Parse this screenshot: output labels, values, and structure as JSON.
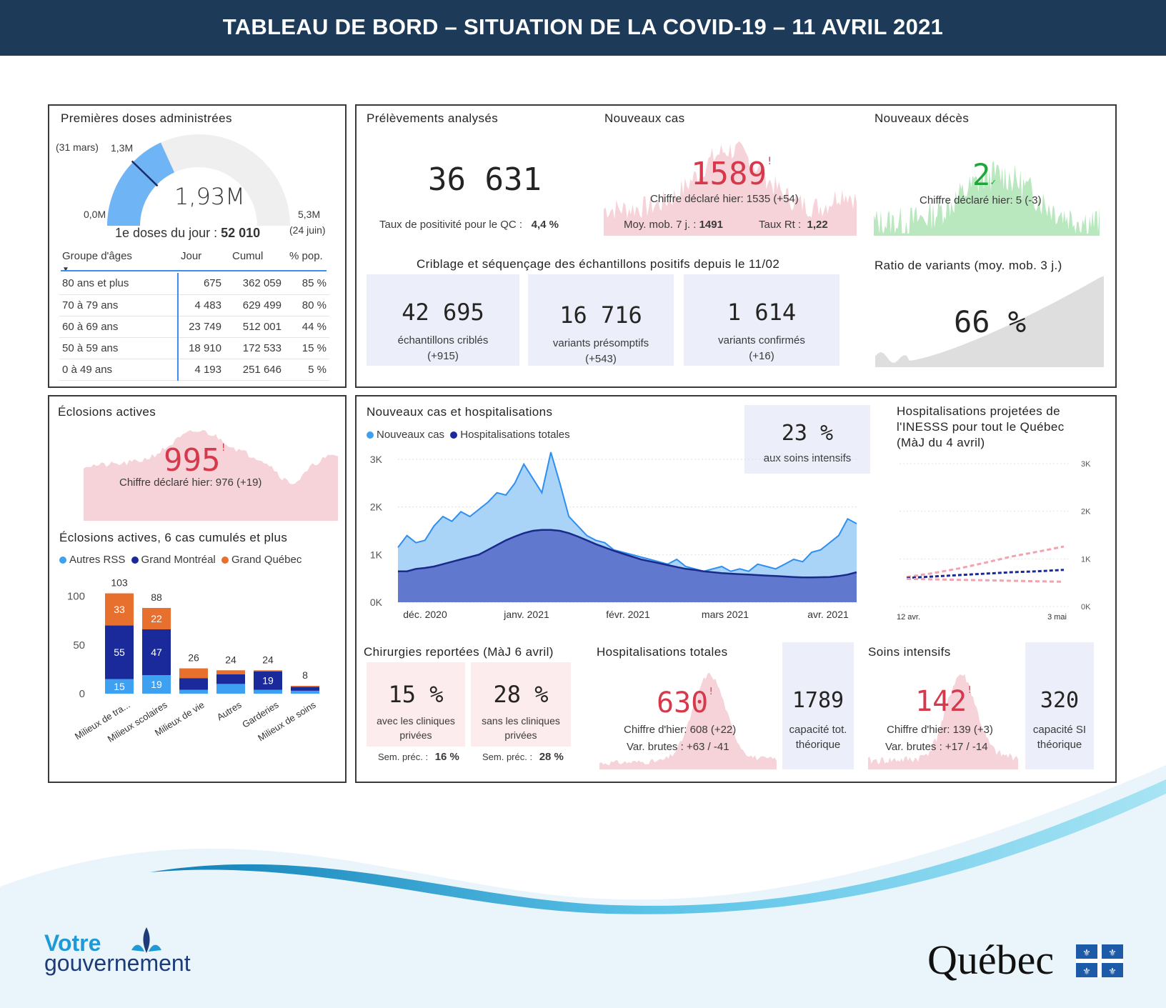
{
  "header": {
    "title": "TABLEAU DE BORD – SITUATION DE LA COVID-19 – 11 AVRIL 2021"
  },
  "doses": {
    "title": "Premières doses administrées",
    "gauge_value": "1,93M",
    "gauge_min": "0,0M",
    "gauge_max": "5,3M",
    "gauge_max_note": "(24 juin)",
    "target_note": "(31 mars)",
    "target_value": "1,3M",
    "gauge_fraction": 0.364,
    "target_fraction": 0.245,
    "daily_label": "1e doses du jour :",
    "daily_value": "52 010",
    "table_headers": [
      "Groupe d'âges",
      "Jour",
      "Cumul",
      "% pop."
    ],
    "rows": [
      [
        "80 ans et plus",
        "675",
        "362 059",
        "85 %"
      ],
      [
        "70 à 79 ans",
        "4 483",
        "629 499",
        "80 %"
      ],
      [
        "60 à 69 ans",
        "23 749",
        "512 001",
        "44 %"
      ],
      [
        "50 à 59 ans",
        "18 910",
        "172 533",
        "15 %"
      ],
      [
        "0 à 49 ans",
        "4 193",
        "251 646",
        "5 %"
      ]
    ]
  },
  "samples": {
    "title": "Prélèvements analysés",
    "value": "36 631",
    "positivity_label": "Taux de positivité pour le QC :",
    "positivity_value": "4,4 %"
  },
  "new_cases": {
    "title": "Nouveaux cas",
    "value": "1589",
    "mark": "!",
    "yesterday": "Chiffre déclaré hier: 1535 (+54)",
    "mm_label": "Moy. mob. 7 j. :",
    "mm_value": "1491",
    "rt_label": "Taux Rt :",
    "rt_value": "1,22"
  },
  "deaths": {
    "title": "Nouveaux décès",
    "value": "2",
    "mark": "✓",
    "yesterday": "Chiffre déclaré hier: 5 (-3)"
  },
  "screening": {
    "title": "Criblage et séquençage des échantillons positifs depuis le 11/02",
    "cards": [
      {
        "value": "42 695",
        "label": "échantillons criblés",
        "delta": "(+915)"
      },
      {
        "value": "16 716",
        "label": "variants présomptifs",
        "delta": "(+543)"
      },
      {
        "value": "1 614",
        "label": "variants confirmés",
        "delta": "(+16)"
      }
    ]
  },
  "variants": {
    "title": "Ratio de variants (moy. mob. 3 j.)",
    "value": "66 %"
  },
  "outbreaks": {
    "title": "Éclosions actives",
    "value": "995",
    "mark": "!",
    "yesterday": "Chiffre déclaré hier: 976 (+19)"
  },
  "outbreaks_chart": {
    "title": "Éclosions actives, 6 cas cumulés et plus",
    "legend": [
      "Autres RSS",
      "Grand Montréal",
      "Grand Québec"
    ]
  },
  "cases_hosp": {
    "title": "Nouveaux cas et hospitalisations",
    "legend": [
      "Nouveaux cas",
      "Hospitalisations totales"
    ],
    "icu_value": "23 %",
    "icu_label": "aux soins intensifs"
  },
  "projection": {
    "title_lines": [
      "Hospitalisations projetées de",
      "l'INESSS pour tout le Québec",
      "(MàJ du 4 avril)"
    ]
  },
  "surgeries": {
    "title": "Chirurgies reportées (MàJ 6 avril)",
    "cards": [
      {
        "value": "15 %",
        "label1": "avec les cliniques",
        "label2": "privées",
        "prev_label": "Sem. préc. :",
        "prev_value": "16 %"
      },
      {
        "value": "28 %",
        "label1": "sans les cliniques",
        "label2": "privées",
        "prev_label": "Sem. préc. :",
        "prev_value": "28 %"
      }
    ]
  },
  "hospital": {
    "title": "Hospitalisations totales",
    "value": "630",
    "mark": "!",
    "yesterday": "Chiffre d'hier: 608 (+22)",
    "var": "Var. brutes : +63  /  -41",
    "capacity_value": "1789",
    "capacity_label1": "capacité tot.",
    "capacity_label2": "théorique"
  },
  "icu": {
    "title": "Soins intensifs",
    "value": "142",
    "mark": "!",
    "yesterday": "Chiffre d'hier: 139 (+3)",
    "var": "Var. brutes : +17  /  -14",
    "capacity_value": "320",
    "capacity_label1": "capacité SI",
    "capacity_label2": "théorique"
  },
  "footer": {
    "gov_line1": "Votre",
    "gov_line2": "gouvernement",
    "quebec": "Québec"
  },
  "colors": {
    "header": "#1d3b58",
    "light_blue": "#3ea0f0",
    "navy": "#1a2a9b",
    "orange": "#e8702f",
    "red": "#d6384c",
    "pink": "#f6d3d8",
    "green": "#b9e7be"
  },
  "chart_data": [
    {
      "type": "bar",
      "title": "Éclosions actives, 6 cas cumulés et plus",
      "categories": [
        "Milieux de tra...",
        "Milieux scolaires",
        "Milieux de vie",
        "Autres",
        "Garderies",
        "Milieux de soins"
      ],
      "series": [
        {
          "name": "Autres RSS",
          "values": [
            15,
            19,
            4,
            10,
            4,
            3
          ]
        },
        {
          "name": "Grand Montréal",
          "values": [
            55,
            47,
            12,
            10,
            19,
            4
          ]
        },
        {
          "name": "Grand Québec",
          "values": [
            33,
            22,
            10,
            4,
            1,
            1
          ]
        }
      ],
      "totals": [
        103,
        88,
        26,
        24,
        24,
        8
      ],
      "ylim": [
        0,
        110
      ],
      "yticks": [
        0,
        50,
        100
      ]
    },
    {
      "type": "area",
      "title": "Nouveaux cas et hospitalisations",
      "x_ticks": [
        "déc. 2020",
        "janv. 2021",
        "févr. 2021",
        "mars 2021",
        "avr. 2021"
      ],
      "y_ticks": [
        "0K",
        "1K",
        "2K",
        "3K"
      ],
      "ylim": [
        0,
        3000
      ],
      "series": [
        {
          "name": "Nouveaux cas",
          "values": [
            1150,
            1400,
            1250,
            1300,
            1600,
            1800,
            1700,
            1900,
            1800,
            1950,
            2100,
            2300,
            2250,
            2500,
            2900,
            2600,
            2300,
            3150,
            2500,
            1800,
            1600,
            1400,
            1300,
            1250,
            1100,
            1050,
            1000,
            950,
            900,
            850,
            800,
            900,
            750,
            700,
            650,
            700,
            750,
            650,
            700,
            650,
            800,
            750,
            700,
            800,
            900,
            850,
            1050,
            1100,
            1250,
            1400,
            1750,
            1650
          ]
        },
        {
          "name": "Hospitalisations totales",
          "values": [
            650,
            650,
            700,
            720,
            750,
            800,
            850,
            900,
            950,
            1000,
            1100,
            1200,
            1300,
            1380,
            1450,
            1500,
            1520,
            1520,
            1500,
            1450,
            1380,
            1300,
            1220,
            1150,
            1080,
            1020,
            960,
            900,
            860,
            820,
            780,
            740,
            700,
            680,
            650,
            630,
            610,
            600,
            590,
            580,
            570,
            560,
            550,
            540,
            530,
            520,
            520,
            525,
            530,
            550,
            580,
            630
          ]
        }
      ]
    },
    {
      "type": "line",
      "title": "Hospitalisations projetées de l'INESSS pour tout le Québec",
      "x_ticks": [
        "12 avr.",
        "3 mai"
      ],
      "y_ticks": [
        "0K",
        "1K",
        "2K",
        "3K"
      ],
      "ylim": [
        0,
        3000
      ],
      "series": [
        {
          "name": "haute",
          "values": [
            620,
            700,
            800,
            920,
            1050,
            1150,
            1260
          ]
        },
        {
          "name": "centrale",
          "values": [
            600,
            630,
            660,
            690,
            720,
            740,
            770
          ]
        },
        {
          "name": "basse",
          "values": [
            580,
            570,
            560,
            550,
            540,
            530,
            520
          ]
        }
      ]
    }
  ]
}
